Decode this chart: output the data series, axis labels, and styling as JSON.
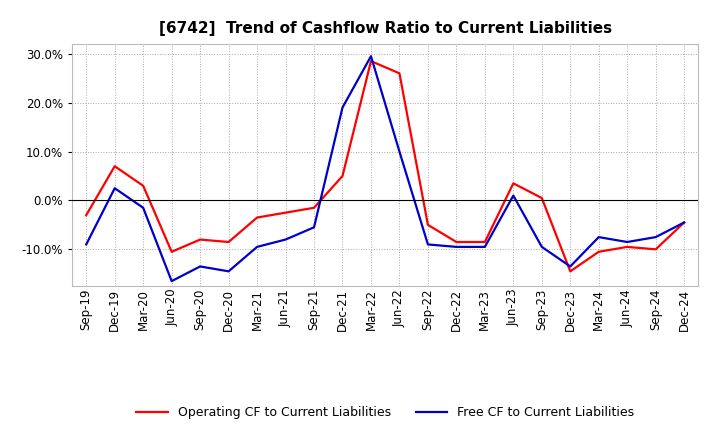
{
  "title": "[6742]  Trend of Cashflow Ratio to Current Liabilities",
  "x_labels": [
    "Sep-19",
    "Dec-19",
    "Mar-20",
    "Jun-20",
    "Sep-20",
    "Dec-20",
    "Mar-21",
    "Jun-21",
    "Sep-21",
    "Dec-21",
    "Mar-22",
    "Jun-22",
    "Sep-22",
    "Dec-22",
    "Mar-23",
    "Jun-23",
    "Sep-23",
    "Dec-23",
    "Mar-24",
    "Jun-24",
    "Sep-24",
    "Dec-24"
  ],
  "operating_cf": [
    -3.0,
    7.0,
    3.0,
    -10.5,
    -8.0,
    -8.5,
    -3.5,
    -2.5,
    -1.5,
    5.0,
    28.5,
    26.0,
    -5.0,
    -8.5,
    -8.5,
    3.5,
    0.5,
    -14.5,
    -10.5,
    -9.5,
    -10.0,
    -4.5
  ],
  "free_cf": [
    -9.0,
    2.5,
    -1.5,
    -16.5,
    -13.5,
    -14.5,
    -9.5,
    -8.0,
    -5.5,
    19.0,
    29.5,
    10.0,
    -9.0,
    -9.5,
    -9.5,
    1.0,
    -9.5,
    -13.5,
    -7.5,
    -8.5,
    -7.5,
    -4.5
  ],
  "operating_color": "#FF0000",
  "free_color": "#0000CC",
  "background_color": "#FFFFFF",
  "plot_bg_color": "#FFFFFF",
  "grid_color": "#AAAAAA",
  "ylim": [
    -17.5,
    32.0
  ],
  "yticks": [
    -10,
    0,
    10,
    20,
    30
  ],
  "legend_labels": [
    "Operating CF to Current Liabilities",
    "Free CF to Current Liabilities"
  ],
  "title_fontsize": 11,
  "axis_fontsize": 8.5,
  "legend_fontsize": 9,
  "linewidth": 1.6
}
